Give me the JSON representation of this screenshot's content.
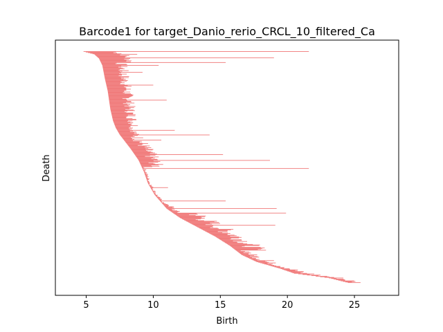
{
  "chart_data": {
    "type": "barcode",
    "title": "Barcode1 for target_Danio_rerio_CRCL_10_filtered_Ca",
    "xlabel": "Birth",
    "ylabel": "Death",
    "xlim": [
      2.7,
      28.3
    ],
    "xticks": [
      5,
      10,
      15,
      20,
      25
    ],
    "xtick_labels": [
      "5",
      "10",
      "15",
      "20",
      "25"
    ],
    "bar_color": "#f07878",
    "y_ticks_shown": false,
    "grid": false,
    "num_bars": 400,
    "bars_sample": [
      {
        "birth": 4.8,
        "death": 21.6
      },
      {
        "birth": 5.6,
        "death": 8.8
      },
      {
        "birth": 5.9,
        "death": 19.0
      },
      {
        "birth": 6.1,
        "death": 15.4
      },
      {
        "birth": 6.2,
        "death": 10.4
      },
      {
        "birth": 6.3,
        "death": 9.2
      },
      {
        "birth": 6.5,
        "death": 10.0
      },
      {
        "birth": 6.7,
        "death": 11.0
      },
      {
        "birth": 7.3,
        "death": 11.6
      },
      {
        "birth": 7.5,
        "death": 14.2
      },
      {
        "birth": 7.8,
        "death": 10.6
      },
      {
        "birth": 8.6,
        "death": 15.2
      },
      {
        "birth": 8.9,
        "death": 18.7
      },
      {
        "birth": 9.2,
        "death": 21.6
      },
      {
        "birth": 9.8,
        "death": 11.1
      },
      {
        "birth": 10.5,
        "death": 15.4
      },
      {
        "birth": 11.0,
        "death": 19.2
      },
      {
        "birth": 11.5,
        "death": 19.9
      },
      {
        "birth": 13.0,
        "death": 19.1
      },
      {
        "birth": 15.5,
        "death": 17.0
      },
      {
        "birth": 17.5,
        "death": 19.0
      },
      {
        "birth": 20.8,
        "death": 22.0
      },
      {
        "birth": 23.1,
        "death": 24.1
      },
      {
        "birth": 24.5,
        "death": 25.0
      }
    ]
  }
}
